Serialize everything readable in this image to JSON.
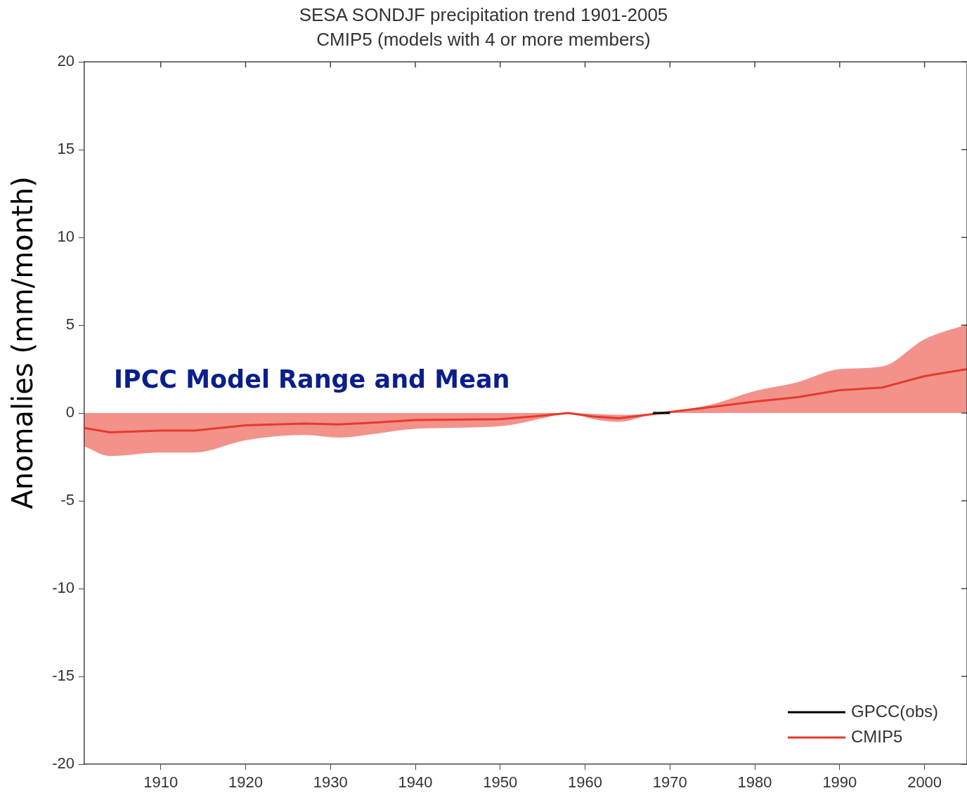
{
  "chart_data": {
    "type": "line",
    "title": "SESA SONDJF precipitation trend 1901-2005",
    "subtitle": "CMIP5 (models with 4 or more members)",
    "ylabel": "Anomalies (mm/month)",
    "annotations": [
      "IPCC Model Range and Mean"
    ],
    "xlim": [
      1901,
      2005
    ],
    "xticks": [
      1910,
      1920,
      1930,
      1940,
      1950,
      1960,
      1970,
      1980,
      1990,
      2000
    ],
    "ylim": [
      -20,
      20
    ],
    "yticks": [
      -20,
      -15,
      -10,
      -5,
      0,
      5,
      10,
      15,
      20
    ],
    "grid": false,
    "legend": "bottom right",
    "marker": "none",
    "line_style": "solid",
    "series": [
      {
        "name": "GPCC(obs)",
        "color": "#000000",
        "x": [
          1968,
          1970
        ],
        "values": [
          0,
          0
        ]
      },
      {
        "name": "CMIP5",
        "color": "#e8392c",
        "x": [
          1901,
          1904,
          1910,
          1914,
          1920,
          1927,
          1931,
          1935,
          1940,
          1950,
          1955,
          1958,
          1961,
          1964,
          1969,
          1975,
          1980,
          1985,
          1990,
          1995,
          2000,
          2005
        ],
        "values": [
          -0.85,
          -1.1,
          -1.0,
          -1.0,
          -0.7,
          -0.6,
          -0.65,
          -0.55,
          -0.4,
          -0.35,
          -0.15,
          0,
          -0.2,
          -0.3,
          0,
          0.35,
          0.65,
          0.9,
          1.3,
          1.45,
          2.1,
          2.5
        ],
        "lower": [
          -1.9,
          -2.45,
          -2.25,
          -2.25,
          -1.55,
          -1.25,
          -1.4,
          -1.2,
          -0.9,
          -0.75,
          -0.3,
          0,
          -0.35,
          -0.5,
          0,
          0,
          0,
          0,
          0,
          0,
          0,
          0
        ],
        "upper": [
          0,
          0,
          0,
          0,
          0,
          0,
          0,
          0,
          0,
          0,
          0,
          0,
          -0.05,
          -0.1,
          0,
          0.5,
          1.25,
          1.75,
          2.5,
          2.65,
          4.2,
          5.05
        ]
      }
    ]
  }
}
